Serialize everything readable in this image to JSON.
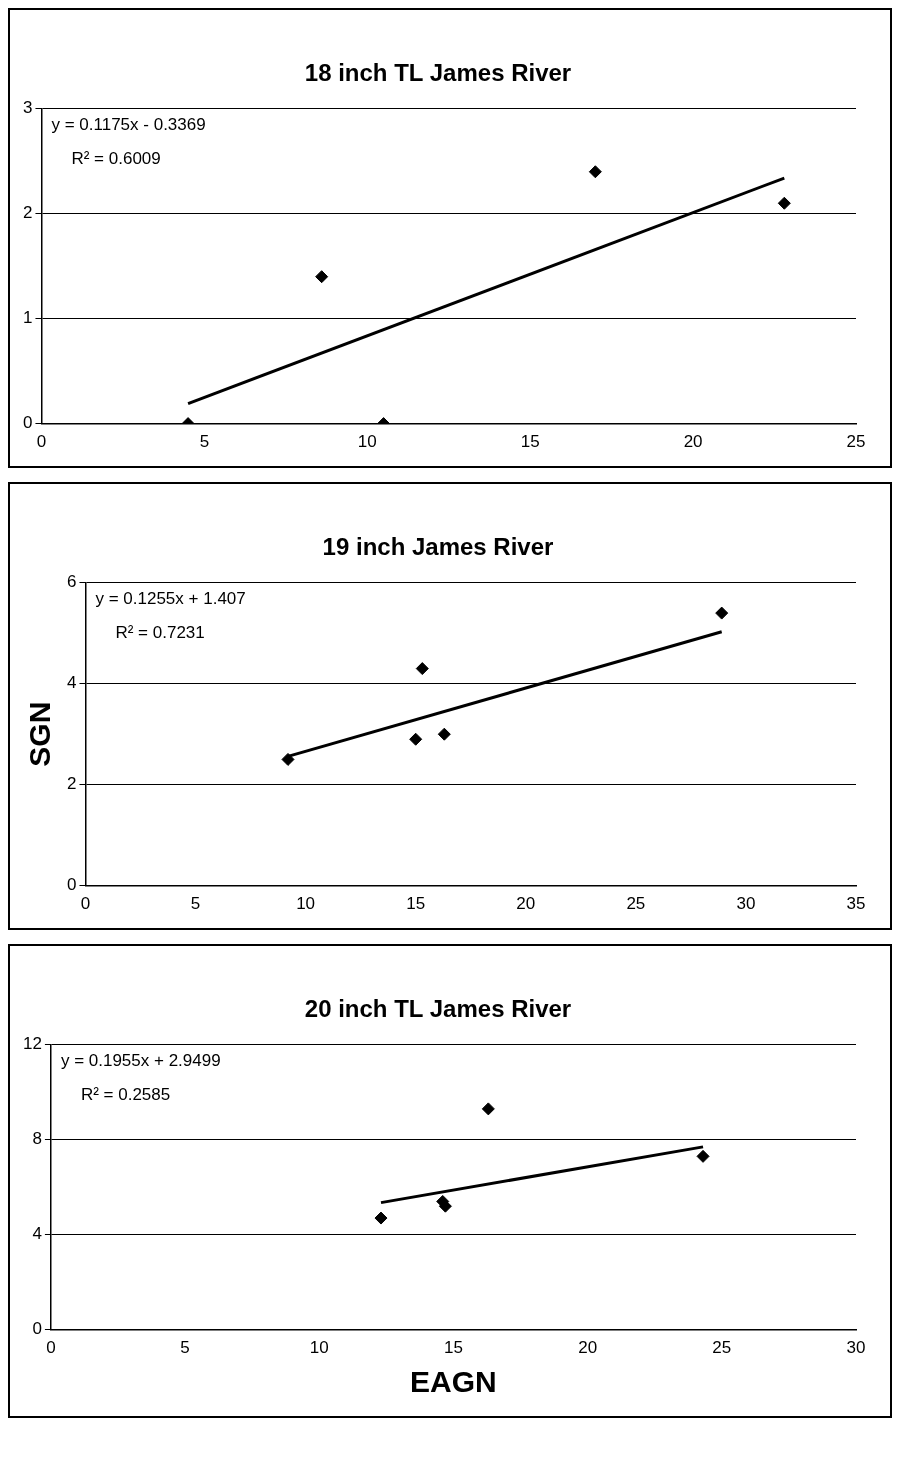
{
  "chart_data": [
    {
      "type": "scatter",
      "title": "18 inch TL James River",
      "xlim": [
        0,
        25
      ],
      "xticks": [
        0,
        5,
        10,
        15,
        20,
        25
      ],
      "ylim": [
        0,
        3
      ],
      "yticks": [
        0,
        1,
        2,
        3
      ],
      "grid": "y",
      "legend": false,
      "annotations": [
        "y = 0.1175x - 0.3369",
        "R² = 0.6009"
      ],
      "series": [
        {
          "type": "scatter",
          "marker": "diamond",
          "color": "#000000",
          "x": [
            4.5,
            8.6,
            10.5,
            17,
            22.8
          ],
          "values": [
            0,
            1.4,
            0,
            2.4,
            2.1
          ]
        },
        {
          "type": "line",
          "marker": "none",
          "color": "#000000",
          "x": [
            4.5,
            22.8
          ],
          "values": [
            0.19,
            2.34
          ]
        }
      ]
    },
    {
      "type": "scatter",
      "title": "19 inch James River",
      "ylabel": "SGN",
      "xlim": [
        0,
        35
      ],
      "xticks": [
        0,
        5,
        10,
        15,
        20,
        25,
        30,
        35
      ],
      "ylim": [
        0,
        6
      ],
      "yticks": [
        0,
        2,
        4,
        6
      ],
      "grid": "y",
      "legend": false,
      "annotations": [
        "y = 0.1255x + 1.407",
        "R² = 0.7231"
      ],
      "series": [
        {
          "type": "scatter",
          "marker": "diamond",
          "color": "#000000",
          "x": [
            9.2,
            15,
            15.3,
            16.3,
            28.9
          ],
          "values": [
            2.5,
            2.9,
            4.3,
            3.0,
            5.4
          ]
        },
        {
          "type": "line",
          "marker": "none",
          "color": "#000000",
          "x": [
            9.2,
            28.9
          ],
          "values": [
            2.56,
            5.03
          ]
        }
      ]
    },
    {
      "type": "scatter",
      "title": "20 inch TL James River",
      "xlabel": "EAGN",
      "xlim": [
        0,
        30
      ],
      "xticks": [
        0,
        5,
        10,
        15,
        20,
        25,
        30
      ],
      "ylim": [
        0,
        12
      ],
      "yticks": [
        0,
        4,
        8,
        12
      ],
      "grid": "y",
      "legend": false,
      "annotations": [
        "y = 0.1955x + 2.9499",
        "R² = 0.2585"
      ],
      "series": [
        {
          "type": "scatter",
          "marker": "diamond",
          "color": "#000000",
          "x": [
            12.3,
            14.6,
            14.7,
            16.3,
            24.3
          ],
          "values": [
            4.7,
            5.4,
            5.2,
            9.3,
            7.3
          ]
        },
        {
          "type": "line",
          "marker": "none",
          "color": "#000000",
          "x": [
            12.3,
            24.3
          ],
          "values": [
            5.35,
            7.7
          ]
        }
      ]
    }
  ]
}
